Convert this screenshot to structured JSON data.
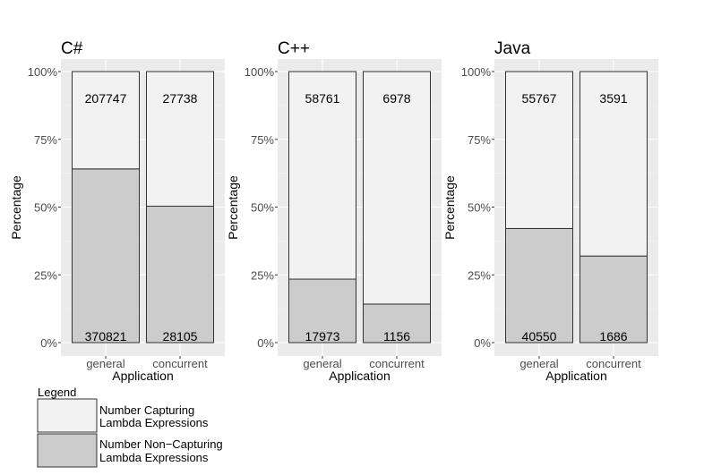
{
  "chart_data": [
    {
      "type": "bar",
      "title": "C#",
      "xlabel": "Application",
      "ylabel": "Percentage",
      "categories": [
        "general",
        "concurrent"
      ],
      "ylim": [
        0,
        100
      ],
      "yticks": [
        "0%",
        "25%",
        "50%",
        "75%",
        "100%"
      ],
      "stacked": "percent",
      "series": [
        {
          "name": "Number Non−Capturing Lambda Expressions",
          "values": [
            370821,
            28105
          ],
          "color": "#cccccc"
        },
        {
          "name": "Number Capturing Lambda Expressions",
          "values": [
            207747,
            27738
          ],
          "color": "#f2f2f2"
        }
      ]
    },
    {
      "type": "bar",
      "title": "C++",
      "xlabel": "Application",
      "ylabel": "Percentage",
      "categories": [
        "general",
        "concurrent"
      ],
      "ylim": [
        0,
        100
      ],
      "yticks": [
        "0%",
        "25%",
        "50%",
        "75%",
        "100%"
      ],
      "stacked": "percent",
      "series": [
        {
          "name": "Number Non−Capturing Lambda Expressions",
          "values": [
            17973,
            1156
          ],
          "color": "#cccccc"
        },
        {
          "name": "Number Capturing Lambda Expressions",
          "values": [
            58761,
            6978
          ],
          "color": "#f2f2f2"
        }
      ]
    },
    {
      "type": "bar",
      "title": "Java",
      "xlabel": "Application",
      "ylabel": "Percentage",
      "categories": [
        "general",
        "concurrent"
      ],
      "ylim": [
        0,
        100
      ],
      "yticks": [
        "0%",
        "25%",
        "50%",
        "75%",
        "100%"
      ],
      "stacked": "percent",
      "series": [
        {
          "name": "Number Non−Capturing Lambda Expressions",
          "values": [
            40550,
            1686
          ],
          "color": "#cccccc"
        },
        {
          "name": "Number Capturing Lambda Expressions",
          "values": [
            55767,
            3591
          ],
          "color": "#f2f2f2"
        }
      ]
    }
  ],
  "legend": {
    "title": "Legend",
    "placement": "bottom-left",
    "items": [
      {
        "line1": "Number Capturing",
        "line2": "Lambda Expressions",
        "color": "#f2f2f2"
      },
      {
        "line1": "Number Non−Capturing",
        "line2": "Lambda Expressions",
        "color": "#cccccc"
      }
    ]
  }
}
